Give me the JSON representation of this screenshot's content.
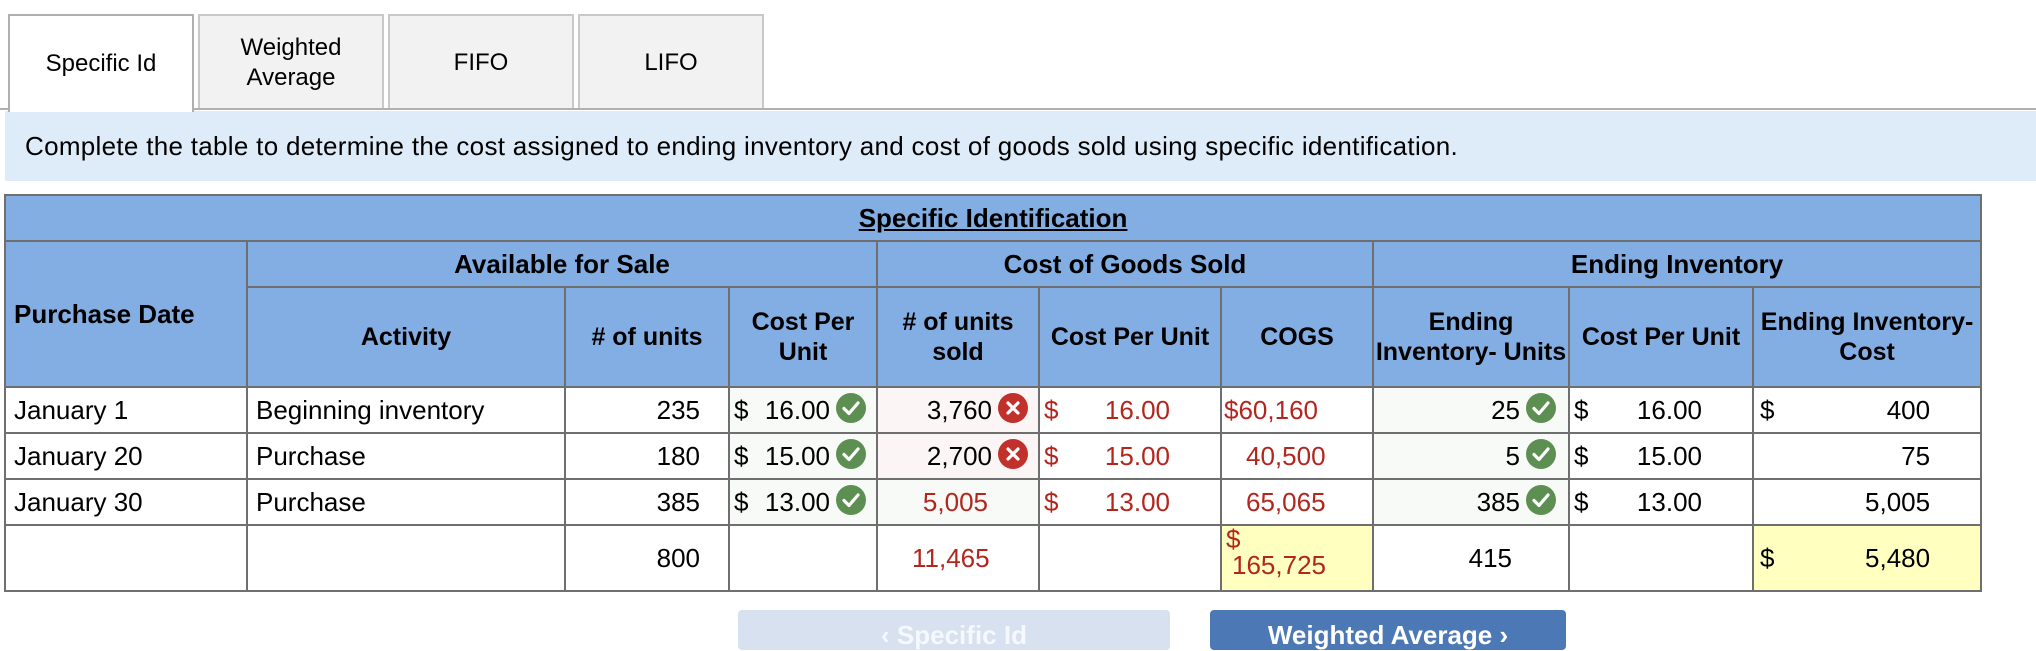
{
  "tabs": [
    {
      "label": "Specific Id",
      "active": true
    },
    {
      "label": "Weighted\nAverage",
      "active": false
    },
    {
      "label": "FIFO",
      "active": false
    },
    {
      "label": "LIFO",
      "active": false
    }
  ],
  "instruction": "Complete the table to determine the cost assigned to ending inventory and cost of goods sold using specific identification.",
  "table": {
    "title": "Specific Identification",
    "groups": {
      "available": "Available for Sale",
      "cogs": "Cost of Goods Sold",
      "ending": "Ending Inventory"
    },
    "headers": {
      "purchase_date": "Purchase Date",
      "activity": "Activity",
      "units": "# of units",
      "cost_per_unit": "Cost Per Unit",
      "units_sold": "# of units sold",
      "cogs_cost_per_unit": "Cost Per Unit",
      "cogs": "COGS",
      "ending_units": "Ending Inventory- Units",
      "ending_cost_per_unit": "Cost Per Unit",
      "ending_cost": "Ending Inventory- Cost"
    },
    "rows": [
      {
        "date": "January 1",
        "activity": "Beginning inventory",
        "units": "235",
        "cpu_symbol": "$",
        "cpu": "16.00",
        "cpu_mark": "check",
        "sold": "3,760",
        "sold_mark": "cross",
        "cogs_cpu_symbol": "$",
        "cogs_cpu": "16.00",
        "cogs_symbol": "$",
        "cogs": "60,160",
        "end_units": "25",
        "end_units_mark": "check",
        "end_cpu_symbol": "$",
        "end_cpu": "16.00",
        "end_cost_symbol": "$",
        "end_cost": "400"
      },
      {
        "date": "January 20",
        "activity": "Purchase",
        "units": "180",
        "cpu_symbol": "$",
        "cpu": "15.00",
        "cpu_mark": "check",
        "sold": "2,700",
        "sold_mark": "cross",
        "cogs_cpu_symbol": "$",
        "cogs_cpu": "15.00",
        "cogs_symbol": "",
        "cogs": "40,500",
        "end_units": "5",
        "end_units_mark": "check",
        "end_cpu_symbol": "$",
        "end_cpu": "15.00",
        "end_cost_symbol": "",
        "end_cost": "75"
      },
      {
        "date": "January 30",
        "activity": "Purchase",
        "units": "385",
        "cpu_symbol": "$",
        "cpu": "13.00",
        "cpu_mark": "check",
        "sold": "5,005",
        "sold_mark": "",
        "cogs_cpu_symbol": "$",
        "cogs_cpu": "13.00",
        "cogs_symbol": "",
        "cogs": "65,065",
        "end_units": "385",
        "end_units_mark": "check",
        "end_cpu_symbol": "$",
        "end_cpu": "13.00",
        "end_cost_symbol": "",
        "end_cost": "5,005"
      }
    ],
    "totals": {
      "units": "800",
      "sold": "11,465",
      "cogs_symbol": "$",
      "cogs": "165,725",
      "end_units": "415",
      "end_cost_symbol": "$",
      "end_cost": "5,480"
    }
  },
  "nav": {
    "prev_label": "‹  Specific Id",
    "next_label": "Weighted Average  ›"
  },
  "colors": {
    "header_blue": "#82aee3",
    "instruction_bg": "#deebf8",
    "error_red": "#b3261e",
    "check_green": "#5e8f52",
    "cross_red": "#c0312b",
    "total_highlight": "#ffffc0"
  }
}
